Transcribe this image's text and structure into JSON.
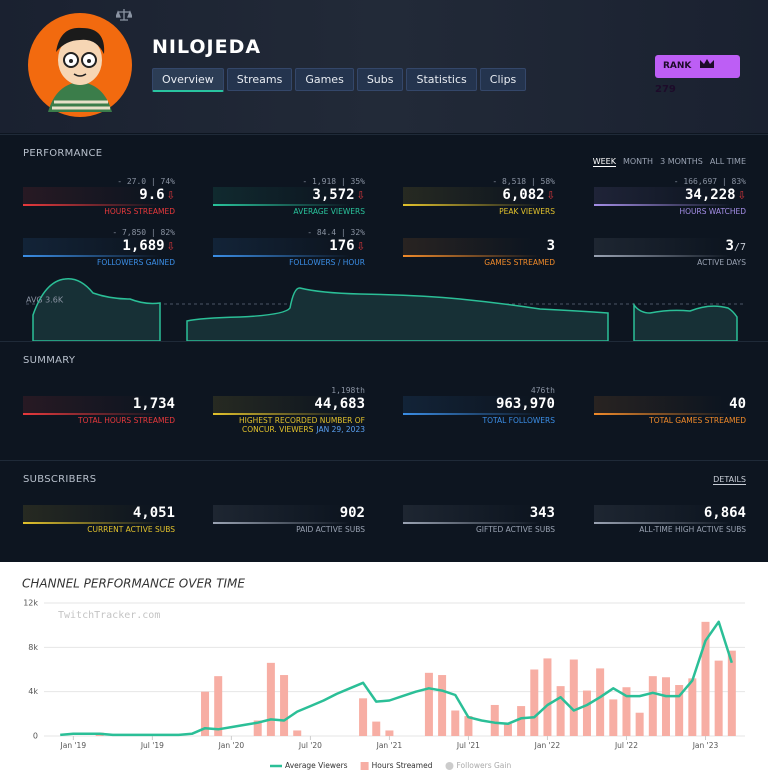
{
  "header": {
    "name": "NILOJEDA",
    "tabs": [
      "Overview",
      "Streams",
      "Games",
      "Subs",
      "Statistics",
      "Clips"
    ],
    "active_tab": 0,
    "rank_label": "RANK",
    "rank": "279"
  },
  "performance": {
    "title": "PERFORMANCE",
    "periods": [
      "WEEK",
      "MONTH",
      "3 MONTHS",
      "ALL TIME"
    ],
    "active_period": 0,
    "avg_label": "AVG 3.6K",
    "stats": [
      {
        "delta": "- 27.0 | 74%",
        "value": "9.6",
        "trend": "down",
        "label": "HOURS STREAMED",
        "color": "#e8393c"
      },
      {
        "delta": "- 1,918 | 35%",
        "value": "3,572",
        "trend": "down",
        "label": "AVERAGE VIEWERS",
        "color": "#29c49c"
      },
      {
        "delta": "- 8,518 | 58%",
        "value": "6,082",
        "trend": "down",
        "label": "PEAK VIEWERS",
        "color": "#e2c22c"
      },
      {
        "delta": "- 166,697 | 83%",
        "value": "34,228",
        "trend": "down",
        "label": "HOURS WATCHED",
        "color": "#a48ee6"
      },
      {
        "delta": "- 7,850 | 82%",
        "value": "1,689",
        "trend": "down",
        "label": "FOLLOWERS GAINED",
        "color": "#3b8ee6"
      },
      {
        "delta": "- 84.4 | 32%",
        "value": "176",
        "trend": "down",
        "label": "FOLLOWERS / HOUR",
        "color": "#3b8ee6"
      },
      {
        "value": "3",
        "label": "GAMES STREAMED",
        "color": "#f08a2a"
      },
      {
        "value": "3",
        "suffix": "/7",
        "label": "ACTIVE DAYS",
        "color": "#9aa3b3"
      }
    ]
  },
  "summary": {
    "title": "SUMMARY",
    "stats": [
      {
        "value": "1,734",
        "label": [
          "TOTAL HOURS STREAMED"
        ],
        "color": "#e8393c"
      },
      {
        "rank": "1,198th",
        "value": "44,683",
        "label": [
          "HIGHEST RECORDED NUMBER OF",
          "CONCUR. VIEWERS"
        ],
        "date": "JAN 29, 2023",
        "color": "#e2c22c"
      },
      {
        "rank": "476th",
        "value": "963,970",
        "label": [
          "TOTAL FOLLOWERS"
        ],
        "color": "#3b8ee6"
      },
      {
        "value": "40",
        "label": [
          "TOTAL GAMES STREAMED"
        ],
        "color": "#f08a2a"
      }
    ]
  },
  "subscribers": {
    "title": "SUBSCRIBERS",
    "details": "DETAILS",
    "stats": [
      {
        "value": "4,051",
        "label": "CURRENT ACTIVE SUBS",
        "color": "#e2c22c"
      },
      {
        "value": "902",
        "label": "PAID ACTIVE SUBS",
        "color": "#9aa3b3"
      },
      {
        "value": "343",
        "label": "GIFTED ACTIVE SUBS",
        "color": "#9aa3b3"
      },
      {
        "value": "6,864",
        "label": "ALL-TIME HIGH ACTIVE SUBS",
        "color": "#9aa3b3"
      }
    ]
  },
  "chart_data": {
    "type": "combo",
    "title": "CHANNEL PERFORMANCE OVER TIME",
    "watermark": "TwitchTracker.com",
    "x": [
      "2018-12",
      "2019-01",
      "2019-02",
      "2019-03",
      "2019-04",
      "2019-05",
      "2019-06",
      "2019-07",
      "2019-08",
      "2019-09",
      "2019-10",
      "2019-11",
      "2019-12",
      "2020-01",
      "2020-02",
      "2020-03",
      "2020-04",
      "2020-05",
      "2020-06",
      "2020-07",
      "2020-08",
      "2020-09",
      "2020-10",
      "2020-11",
      "2020-12",
      "2021-01",
      "2021-02",
      "2021-03",
      "2021-04",
      "2021-05",
      "2021-06",
      "2021-07",
      "2021-08",
      "2021-09",
      "2021-10",
      "2021-11",
      "2021-12",
      "2022-01",
      "2022-02",
      "2022-03",
      "2022-04",
      "2022-05",
      "2022-06",
      "2022-07",
      "2022-08",
      "2022-09",
      "2022-10",
      "2022-11",
      "2022-12",
      "2023-01",
      "2023-02",
      "2023-03"
    ],
    "xlim": [
      "2018-11",
      "2023-04"
    ],
    "xticks": [
      {
        "value": "2019-01",
        "label": "Jan '19"
      },
      {
        "value": "2019-07",
        "label": "Jul '19"
      },
      {
        "value": "2020-01",
        "label": "Jan '20"
      },
      {
        "value": "2020-07",
        "label": "Jul '20"
      },
      {
        "value": "2021-01",
        "label": "Jan '21"
      },
      {
        "value": "2021-07",
        "label": "Jul '21"
      },
      {
        "value": "2022-01",
        "label": "Jan '22"
      },
      {
        "value": "2022-07",
        "label": "Jul '22"
      },
      {
        "value": "2023-01",
        "label": "Jan '23"
      }
    ],
    "ylim": [
      0,
      12000
    ],
    "yticks": [
      0,
      {
        "value": 4000,
        "label": "4k"
      },
      {
        "value": 8000,
        "label": "8k"
      },
      {
        "value": 12000,
        "label": "12k"
      }
    ],
    "grid": true,
    "series": [
      {
        "name": "Average Viewers",
        "kind": "line",
        "color": "#2bbf97",
        "values": [
          100,
          200,
          200,
          200,
          100,
          100,
          100,
          100,
          100,
          100,
          200,
          700,
          600,
          800,
          1000,
          1200,
          1500,
          1400,
          2200,
          2700,
          3200,
          3800,
          4300,
          4800,
          3100,
          3200,
          3600,
          4000,
          4300,
          4100,
          3700,
          1700,
          1400,
          1200,
          1100,
          1600,
          1700,
          2800,
          3500,
          2300,
          2800,
          3500,
          4300,
          3600,
          3600,
          3900,
          3600,
          3600,
          5000,
          8600,
          10300,
          6600
        ]
      },
      {
        "name": "Hours Streamed",
        "kind": "bar",
        "color": "#f7aea4",
        "values": [
          null,
          null,
          null,
          300,
          null,
          null,
          null,
          null,
          null,
          null,
          null,
          4000,
          5400,
          null,
          null,
          1400,
          6600,
          5500,
          500,
          null,
          null,
          null,
          null,
          3400,
          1300,
          500,
          null,
          null,
          5700,
          5500,
          2300,
          1800,
          null,
          2800,
          1100,
          2700,
          6000,
          7000,
          4500,
          6900,
          4100,
          6100,
          3300,
          4400,
          2100,
          5400,
          5300,
          4600,
          5200,
          10300,
          6800,
          7700
        ]
      },
      {
        "name": "Followers Gain",
        "kind": "bar",
        "color": "#cccccc",
        "hidden": true
      }
    ]
  }
}
